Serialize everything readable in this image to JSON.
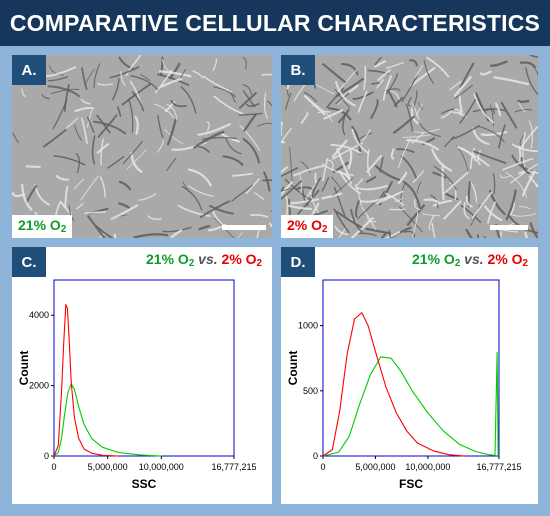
{
  "title": "COMPARATIVE CELLULAR CHARACTERISTICS",
  "panels": {
    "a": {
      "letter": "A.",
      "label_main": "21% O",
      "label_sub": "2"
    },
    "b": {
      "letter": "B.",
      "label_main": "2% O",
      "label_sub": "2"
    },
    "c": {
      "letter": "C."
    },
    "d": {
      "letter": "D."
    }
  },
  "legend": {
    "green_main": "21% O",
    "green_sub": "2",
    "vs": "vs.",
    "red_main": "2% O",
    "red_sub": "2"
  },
  "colors": {
    "green": "#00cc00",
    "red": "#ff0000",
    "axis": "#0000cc",
    "header": "#16365c",
    "background": "#8fb4d9"
  },
  "chart_data": [
    {
      "type": "line",
      "panel": "C",
      "xlabel": "SSC",
      "ylabel": "Count",
      "xlim": [
        0,
        16777215
      ],
      "ylim": [
        0,
        5000
      ],
      "xticks": [
        "0",
        "5,000,000",
        "10,000,000",
        "16,777,215"
      ],
      "xtick_values": [
        0,
        5000000,
        10000000,
        16777215
      ],
      "yticks": [
        "0",
        "2000",
        "4000"
      ],
      "ytick_values": [
        0,
        2000,
        4000
      ],
      "series": [
        {
          "name": "21% O2",
          "color": "#00cc00",
          "x": [
            0,
            400000,
            700000,
            1000000,
            1300000,
            1600000,
            1900000,
            2300000,
            2800000,
            3500000,
            4500000,
            6000000,
            8000000,
            10000000
          ],
          "y": [
            0,
            100,
            500,
            1200,
            1800,
            2050,
            1900,
            1400,
            900,
            500,
            250,
            100,
            30,
            0
          ]
        },
        {
          "name": "2% O2",
          "color": "#ff0000",
          "x": [
            0,
            400000,
            700000,
            900000,
            1100000,
            1250000,
            1400000,
            1600000,
            1900000,
            2300000,
            2800000,
            3500000,
            4500000,
            6000000
          ],
          "y": [
            0,
            300,
            1800,
            3200,
            4300,
            4200,
            3400,
            2100,
            1100,
            500,
            200,
            80,
            20,
            0
          ]
        }
      ]
    },
    {
      "type": "line",
      "panel": "D",
      "xlabel": "FSC",
      "ylabel": "Count",
      "xlim": [
        0,
        16777215
      ],
      "ylim": [
        0,
        1350
      ],
      "xticks": [
        "0",
        "5,000,000",
        "10,000,000",
        "16,777,215"
      ],
      "xtick_values": [
        0,
        5000000,
        10000000,
        16777215
      ],
      "yticks": [
        "0",
        "500",
        "1000"
      ],
      "ytick_values": [
        0,
        500,
        1000
      ],
      "series": [
        {
          "name": "21% O2",
          "color": "#00cc00",
          "x": [
            0,
            1500000,
            2500000,
            3500000,
            4500000,
            5500000,
            6500000,
            7500000,
            8500000,
            10000000,
            11500000,
            13000000,
            14500000,
            15800000,
            16400000,
            16600000,
            16700000
          ],
          "y": [
            0,
            30,
            150,
            400,
            620,
            760,
            750,
            640,
            500,
            330,
            190,
            90,
            35,
            10,
            5,
            795,
            0
          ]
        },
        {
          "name": "2% O2",
          "color": "#ff0000",
          "x": [
            0,
            900000,
            1600000,
            2300000,
            3000000,
            3700000,
            4300000,
            5000000,
            6000000,
            7000000,
            8000000,
            9000000,
            10500000,
            12000000,
            13500000
          ],
          "y": [
            0,
            50,
            350,
            780,
            1050,
            1100,
            1000,
            800,
            530,
            330,
            190,
            100,
            40,
            10,
            0
          ]
        }
      ]
    }
  ]
}
